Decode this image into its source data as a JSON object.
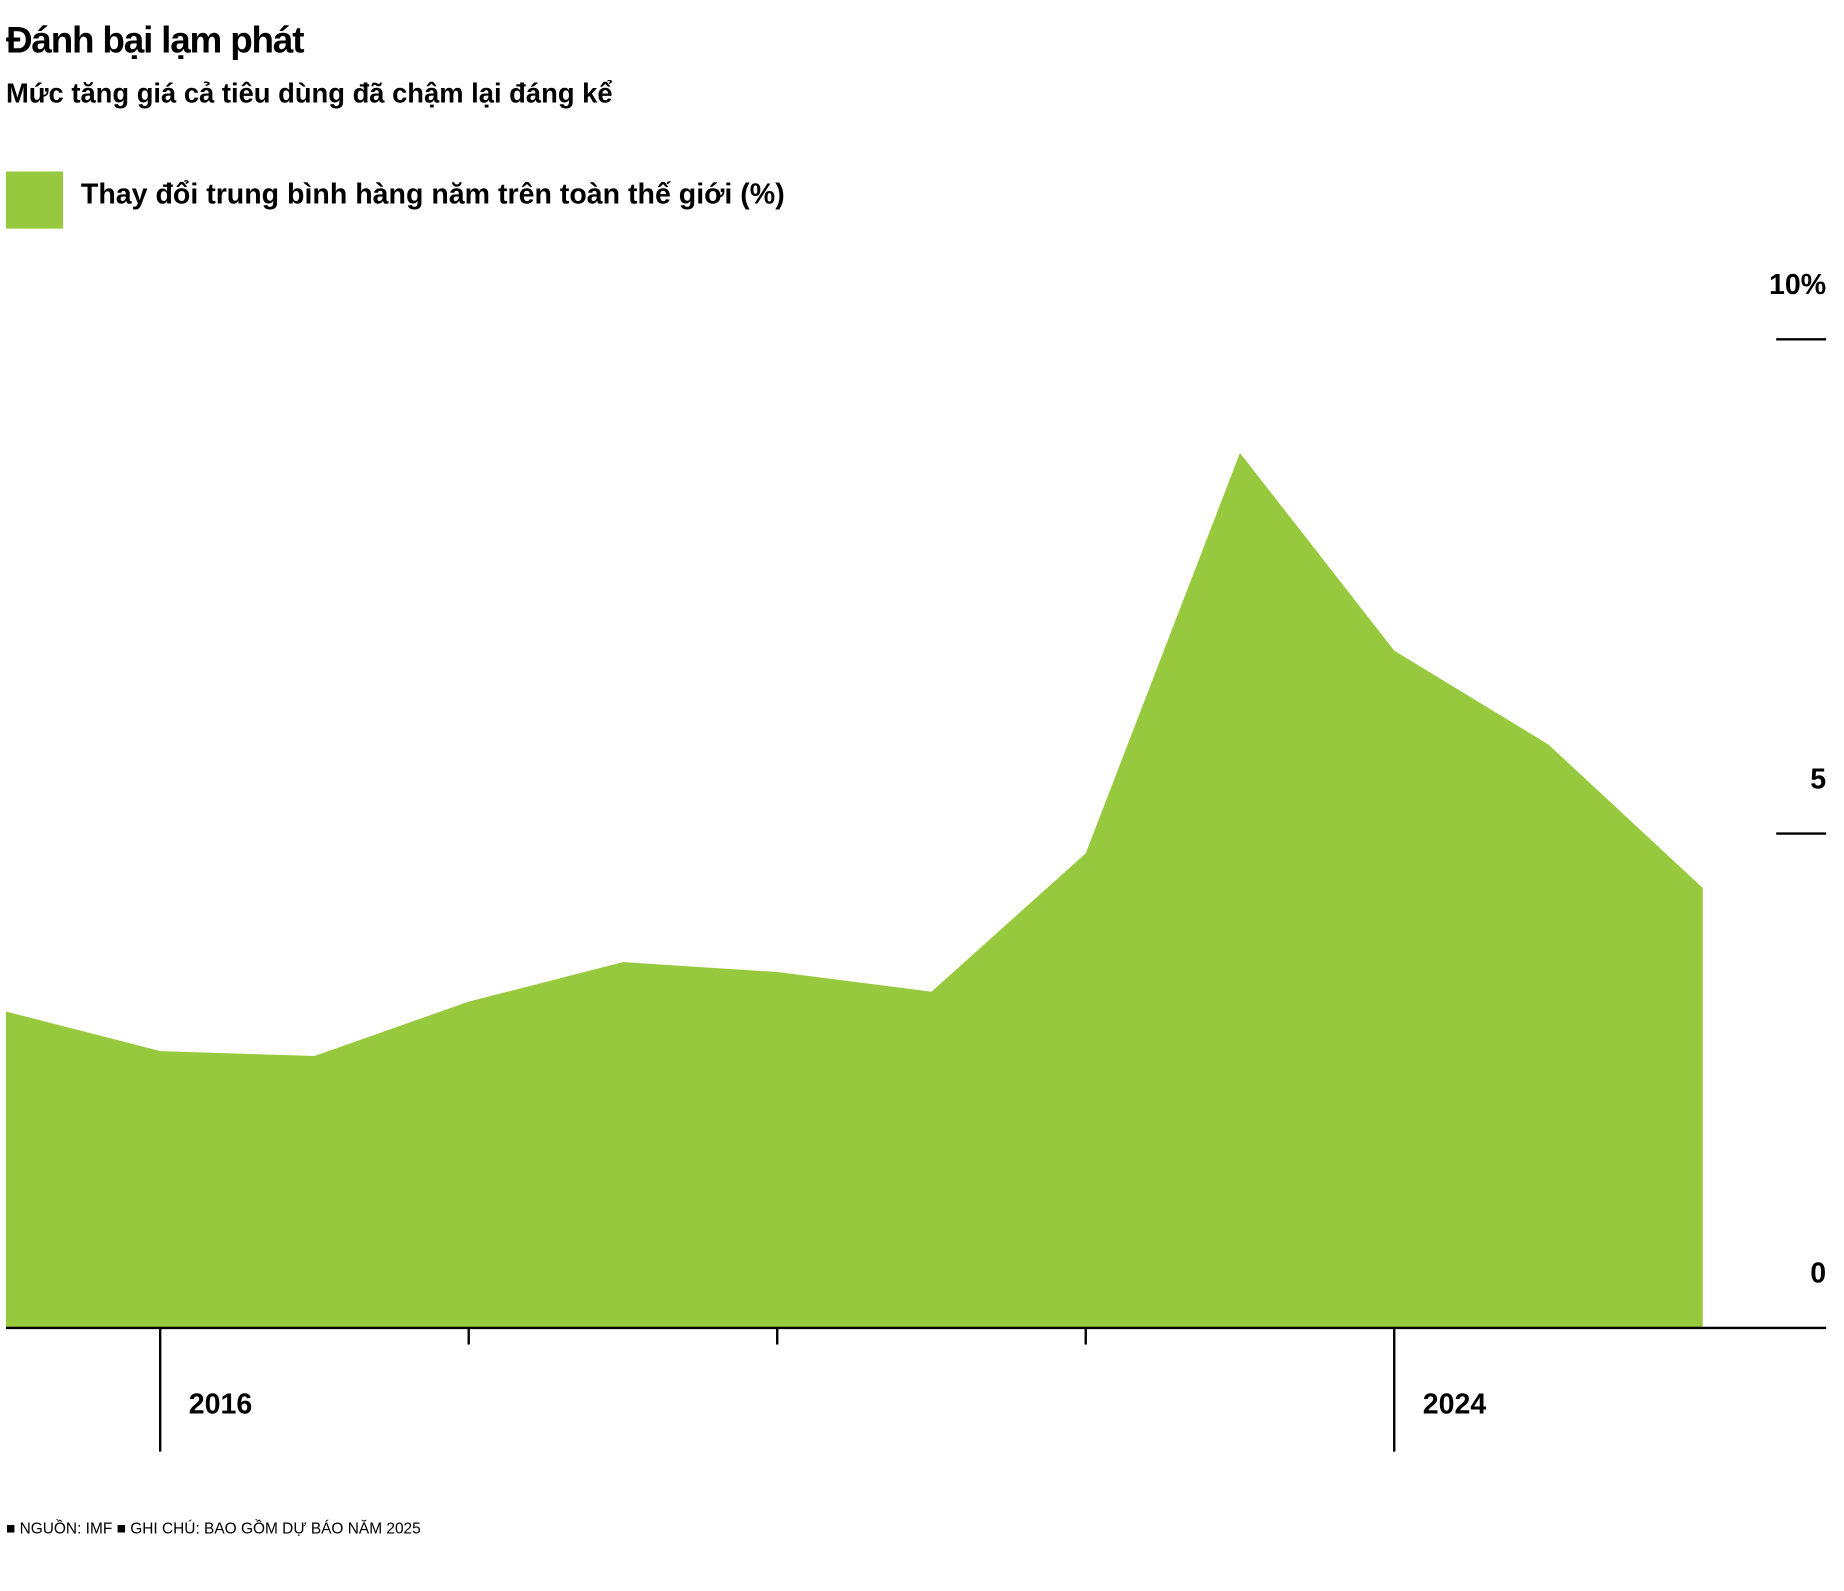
{
  "chart_data": {
    "type": "area",
    "title": "Đánh bại lạm phát",
    "subtitle": "Mức tăng giá cả tiêu dùng đã chậm lại đáng kể",
    "footnote": "■ NGUỒN: IMF ■ GHI CHÚ: BAO GỒM DỰ BÁO NĂM 2025",
    "x": [
      2015,
      2016,
      2017,
      2018,
      2019,
      2020,
      2021,
      2022,
      2023,
      2024,
      2025,
      2026
    ],
    "series": [
      {
        "name": "Thay đổi trung bình hàng năm trên toàn thế giới (%)",
        "color": "#96c93d",
        "values": [
          3.2,
          2.8,
          2.75,
          3.3,
          3.7,
          3.6,
          3.4,
          4.8,
          8.85,
          6.85,
          5.9,
          4.45
        ]
      }
    ],
    "xlim": [
      2015,
      2026.8
    ],
    "xticks": [
      2016,
      2024
    ],
    "xminor_ticks": [
      2018,
      2020,
      2022
    ],
    "ylim": [
      0,
      10
    ],
    "yticks": [
      0,
      5,
      {
        "value": 10,
        "label": "10%"
      }
    ]
  }
}
